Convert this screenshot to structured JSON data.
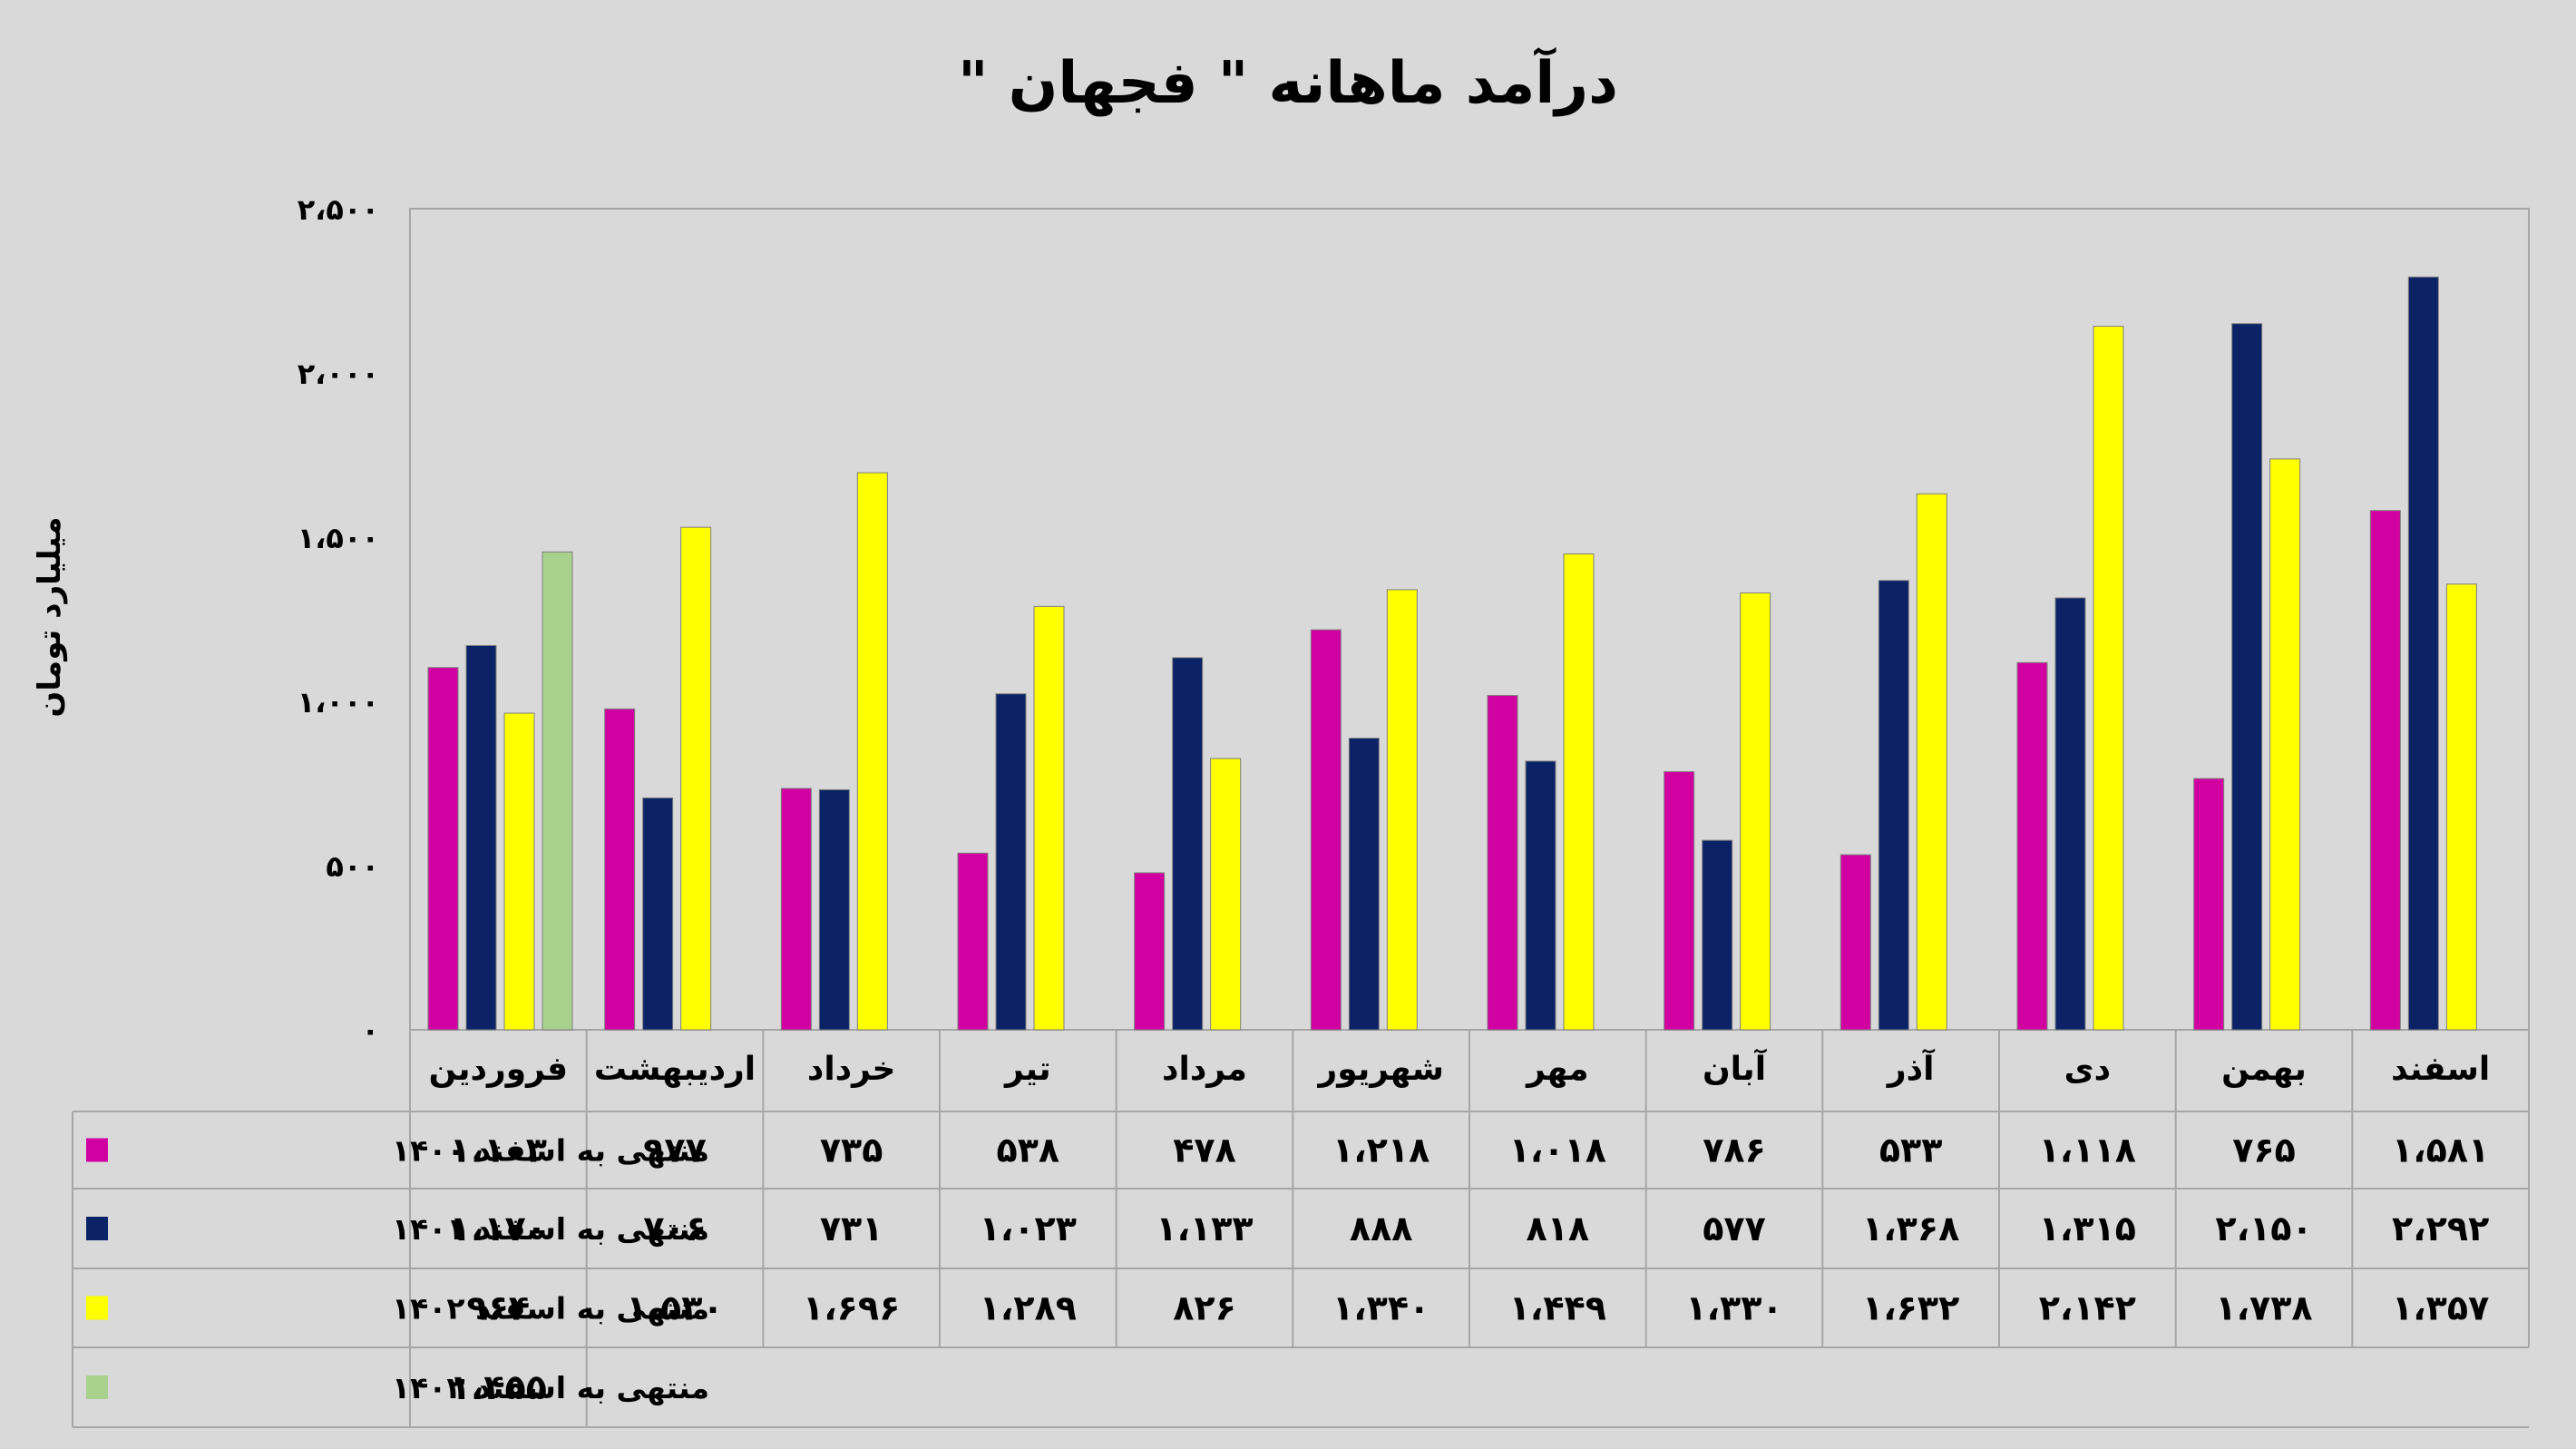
{
  "chart_data": {
    "type": "bar",
    "title": "درآمد ماهانه \" فجهان \"",
    "ylabel": "میلیارد تومان",
    "ylim": [
      0,
      2500
    ],
    "yticks": [
      0,
      500,
      1000,
      1500,
      2000,
      2500
    ],
    "ytick_labels": [
      "۰",
      "۵۰۰",
      "۱،۰۰۰",
      "۱،۵۰۰",
      "۲،۰۰۰",
      "۲،۵۰۰"
    ],
    "grid": false,
    "legend": "table-left",
    "categories": [
      "فروردین",
      "اردیبهشت",
      "خرداد",
      "تیر",
      "مرداد",
      "شهریور",
      "مهر",
      "آبان",
      "آذر",
      "دی",
      "بهمن",
      "اسفند"
    ],
    "series": [
      {
        "name": "منتهی به اسفند ۱۴۰۰",
        "color": "#d100a0",
        "values": [
          1103,
          977,
          735,
          538,
          478,
          1218,
          1018,
          786,
          533,
          1118,
          765,
          1581
        ],
        "labels": [
          "۱،۱۰۳",
          "۹۷۷",
          "۷۳۵",
          "۵۳۸",
          "۴۷۸",
          "۱،۲۱۸",
          "۱،۰۱۸",
          "۷۸۶",
          "۵۳۳",
          "۱،۱۱۸",
          "۷۶۵",
          "۱،۵۸۱"
        ]
      },
      {
        "name": "منتهی به اسفند ۱۴۰۱",
        "color": "#0b2366",
        "values": [
          1170,
          706,
          731,
          1023,
          1133,
          888,
          818,
          577,
          1368,
          1315,
          2150,
          2292
        ],
        "labels": [
          "۱،۱۷۰",
          "۷۰۶",
          "۷۳۱",
          "۱،۰۲۳",
          "۱،۱۳۳",
          "۸۸۸",
          "۸۱۸",
          "۵۷۷",
          "۱،۳۶۸",
          "۱،۳۱۵",
          "۲،۱۵۰",
          "۲،۲۹۲"
        ]
      },
      {
        "name": "منتهی به اسفند ۱۴۰۲",
        "color": "#ffff00",
        "values": [
          964,
          1530,
          1696,
          1289,
          826,
          1340,
          1449,
          1330,
          1632,
          2142,
          1738,
          1357
        ],
        "labels": [
          "۹۶۴",
          "۱،۵۳۰",
          "۱،۶۹۶",
          "۱،۲۸۹",
          "۸۲۶",
          "۱،۳۴۰",
          "۱،۴۴۹",
          "۱،۳۳۰",
          "۱،۶۳۲",
          "۲،۱۴۲",
          "۱،۷۳۸",
          "۱،۳۵۷"
        ]
      },
      {
        "name": "منتهی به اسفند ۱۴۰۳",
        "color": "#a9d18e",
        "values": [
          1455,
          null,
          null,
          null,
          null,
          null,
          null,
          null,
          null,
          null,
          null,
          null
        ],
        "labels": [
          "۱،۴۵۵",
          "",
          "",
          "",
          "",
          "",
          "",
          "",
          "",
          "",
          "",
          ""
        ]
      }
    ]
  }
}
